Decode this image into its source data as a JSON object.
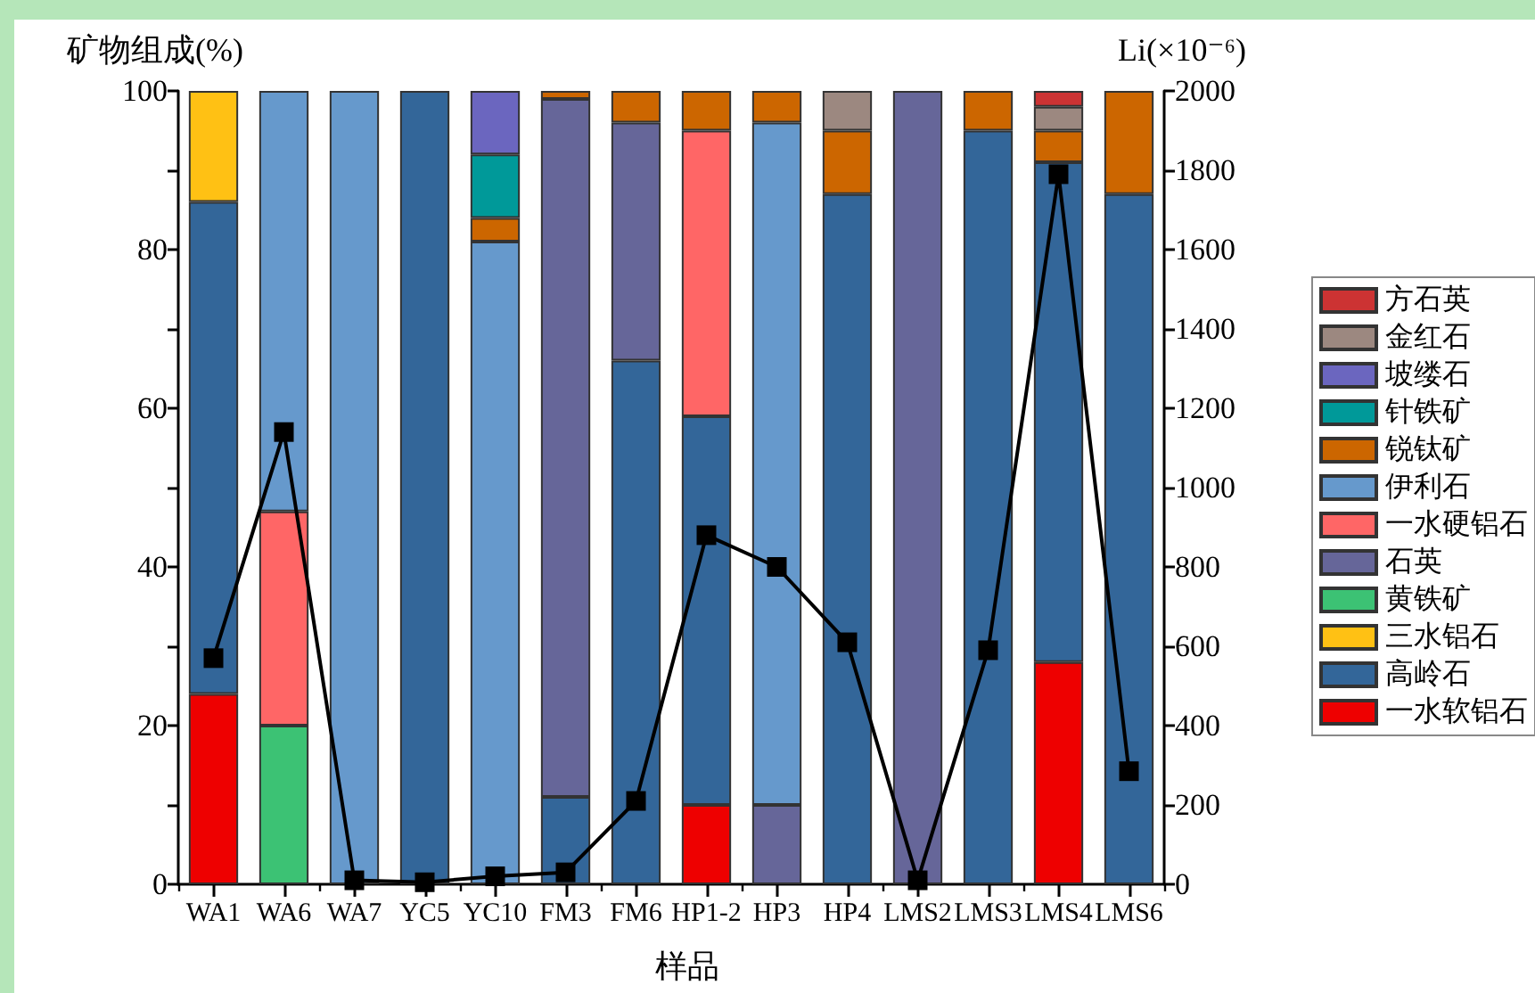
{
  "chart_data": {
    "type": "bar",
    "stacked": true,
    "categories": [
      "WA1",
      "WA6",
      "WA7",
      "YC5",
      "YC10",
      "FM3",
      "FM6",
      "HP1-2",
      "HP3",
      "HP4",
      "LMS2",
      "LMS3",
      "LMS4",
      "LMS6"
    ],
    "xlabel": "样品",
    "ylabel": "矿物组成(%)",
    "y2label": "Li(×10⁻⁶)",
    "series": [
      {
        "name": "一水软铝石",
        "color": "#ee0000",
        "values": [
          24,
          null,
          null,
          null,
          null,
          null,
          null,
          10,
          null,
          null,
          null,
          null,
          28,
          null
        ]
      },
      {
        "name": "高岭石",
        "color": "#336699",
        "values": [
          62,
          null,
          null,
          100,
          null,
          11,
          66,
          49,
          null,
          87,
          null,
          95,
          63,
          87
        ]
      },
      {
        "name": "三水铝石",
        "color": "#ffc114",
        "values": [
          14,
          null,
          null,
          null,
          null,
          null,
          null,
          null,
          null,
          null,
          null,
          null,
          null,
          null
        ]
      },
      {
        "name": "黄铁矿",
        "color": "#3cc274",
        "values": [
          null,
          20,
          null,
          null,
          null,
          null,
          null,
          null,
          null,
          null,
          null,
          null,
          null,
          null
        ]
      },
      {
        "name": "石英",
        "color": "#666699",
        "values": [
          null,
          null,
          null,
          null,
          null,
          88,
          30,
          null,
          10,
          null,
          100,
          null,
          null,
          null
        ]
      },
      {
        "name": "一水硬铝石",
        "color": "#ff6666",
        "values": [
          null,
          27,
          null,
          null,
          null,
          null,
          null,
          36,
          null,
          null,
          null,
          null,
          null,
          null
        ]
      },
      {
        "name": "伊利石",
        "color": "#6699cc",
        "values": [
          null,
          53,
          100,
          null,
          81,
          null,
          null,
          null,
          86,
          null,
          null,
          null,
          null,
          null
        ]
      },
      {
        "name": "锐钛矿",
        "color": "#cc6600",
        "values": [
          null,
          null,
          null,
          null,
          3,
          1,
          4,
          5,
          4,
          8,
          null,
          5,
          4,
          13
        ]
      },
      {
        "name": "针铁矿",
        "color": "#009999",
        "values": [
          null,
          null,
          null,
          null,
          8,
          null,
          null,
          null,
          null,
          null,
          null,
          null,
          null,
          null
        ]
      },
      {
        "name": "坡缕石",
        "color": "#6b66bf",
        "values": [
          null,
          null,
          null,
          null,
          8,
          null,
          null,
          null,
          null,
          null,
          null,
          null,
          null,
          null
        ]
      },
      {
        "name": "金红石",
        "color": "#9c8880",
        "values": [
          null,
          null,
          null,
          null,
          null,
          null,
          null,
          null,
          null,
          5,
          null,
          null,
          3,
          null
        ]
      },
      {
        "name": "方石英",
        "color": "#cc3333",
        "values": [
          null,
          null,
          null,
          null,
          null,
          null,
          null,
          null,
          null,
          null,
          null,
          null,
          2,
          null
        ]
      },
      {
        "type": "line",
        "axis": "y2",
        "color": "#000000",
        "values": [
          570,
          1140,
          10,
          5,
          20,
          30,
          210,
          880,
          800,
          610,
          10,
          590,
          1790,
          285
        ]
      }
    ],
    "ylim": [
      0,
      100
    ],
    "yticks": [
      0,
      {
        "value": 10,
        "label": null
      },
      20,
      {
        "value": 30,
        "label": null
      },
      40,
      {
        "value": 50,
        "label": null
      },
      60,
      {
        "value": 70,
        "label": null
      },
      80,
      {
        "value": 90,
        "label": null
      },
      100
    ],
    "y2lim": [
      0,
      2000
    ],
    "y2ticks": [
      0,
      200,
      400,
      600,
      800,
      1000,
      1200,
      1400,
      1600,
      1800,
      2000
    ],
    "marker": "square",
    "line_style": "solid",
    "grid": false,
    "legend": "right"
  }
}
